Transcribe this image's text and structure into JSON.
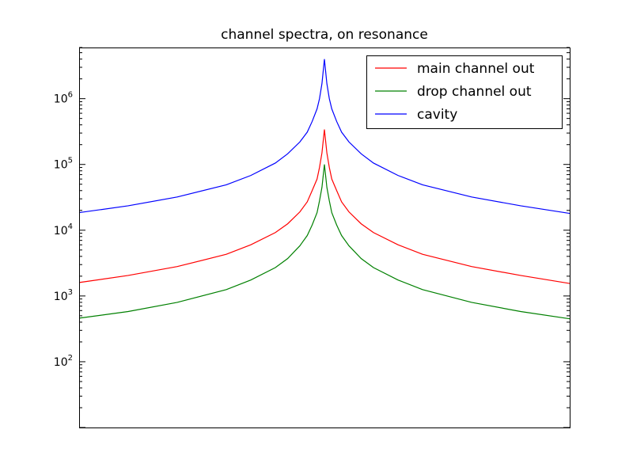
{
  "chart_data": {
    "type": "line",
    "title": "channel spectra, on resonance",
    "xlabel": "",
    "ylabel": "",
    "yscale": "log",
    "ylim": [
      10,
      6000000
    ],
    "xlim": [
      -1,
      1
    ],
    "xticks_visible": false,
    "yticks": [
      {
        "value": 100,
        "base": "10",
        "exp": "2"
      },
      {
        "value": 1000,
        "base": "10",
        "exp": "3"
      },
      {
        "value": 10000,
        "base": "10",
        "exp": "4"
      },
      {
        "value": 100000,
        "base": "10",
        "exp": "5"
      },
      {
        "value": 1000000,
        "base": "10",
        "exp": "6"
      }
    ],
    "grid": false,
    "legend_position": "top-right",
    "series": [
      {
        "name": "main channel out",
        "color": "#ff0000",
        "x": [
          -1,
          -0.8,
          -0.6,
          -0.4,
          -0.3,
          -0.2,
          -0.15,
          -0.1,
          -0.07,
          -0.05,
          -0.03,
          -0.02,
          -0.01,
          0,
          0.01,
          0.02,
          0.03,
          0.05,
          0.07,
          0.1,
          0.15,
          0.2,
          0.3,
          0.4,
          0.6,
          0.8,
          1
        ],
        "values": [
          1600,
          2050,
          2800,
          4300,
          6000,
          9200,
          12500,
          19000,
          27000,
          40000,
          60000,
          90000,
          150000,
          340000,
          150000,
          90000,
          60000,
          40000,
          27000,
          19000,
          12500,
          9200,
          6000,
          4300,
          2800,
          2050,
          1550
        ]
      },
      {
        "name": "drop channel out",
        "color": "#008000",
        "x": [
          -1,
          -0.8,
          -0.6,
          -0.4,
          -0.3,
          -0.2,
          -0.15,
          -0.1,
          -0.07,
          -0.05,
          -0.03,
          -0.02,
          -0.01,
          0,
          0.01,
          0.02,
          0.03,
          0.05,
          0.07,
          0.1,
          0.15,
          0.2,
          0.3,
          0.4,
          0.6,
          0.8,
          1
        ],
        "values": [
          460,
          580,
          800,
          1250,
          1750,
          2700,
          3700,
          5800,
          8300,
          12000,
          18500,
          28000,
          45000,
          100000,
          45000,
          28000,
          18500,
          12000,
          8300,
          5800,
          3700,
          2700,
          1750,
          1250,
          800,
          580,
          450
        ]
      },
      {
        "name": "cavity",
        "color": "#0000ff",
        "x": [
          -1,
          -0.8,
          -0.6,
          -0.4,
          -0.3,
          -0.2,
          -0.15,
          -0.1,
          -0.07,
          -0.05,
          -0.03,
          -0.02,
          -0.01,
          0,
          0.01,
          0.02,
          0.03,
          0.05,
          0.07,
          0.1,
          0.15,
          0.2,
          0.3,
          0.4,
          0.6,
          0.8,
          1
        ],
        "values": [
          18500,
          23500,
          32000,
          49000,
          68000,
          105000,
          145000,
          220000,
          310000,
          450000,
          700000,
          1000000,
          1700000,
          4000000,
          1700000,
          1000000,
          700000,
          450000,
          310000,
          220000,
          145000,
          105000,
          68000,
          49000,
          32000,
          23500,
          18000
        ]
      }
    ]
  }
}
